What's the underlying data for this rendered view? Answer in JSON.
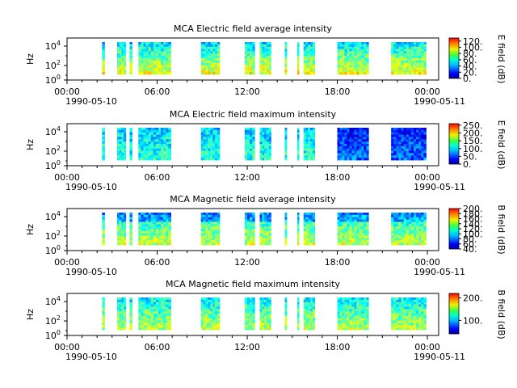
{
  "figure": {
    "x_tick_labels": [
      "00:00",
      "06:00",
      "12:00",
      "18:00",
      "00:00"
    ],
    "x_date_labels": [
      "1990-05-10",
      "1990-05-11"
    ]
  },
  "chart_data": [
    {
      "type": "heatmap",
      "title": "MCA  Electric field average intensity",
      "ylabel": "Hz",
      "y_tick_labels": [
        "10^0",
        "10^2",
        "10^4"
      ],
      "ylim_hz": [
        1,
        30000
      ],
      "y_scale": "log",
      "xlim": [
        "1990-05-10 00:00",
        "1990-05-11 00:45"
      ],
      "colorbar": {
        "label": "E field (dB)",
        "range": [
          0,
          130
        ],
        "ticks": [
          0,
          20,
          40,
          60,
          80,
          100,
          120
        ],
        "tick_labels": [
          "0.",
          "20.",
          "40.",
          "60.",
          "80.",
          "100.",
          "120."
        ]
      },
      "data_intervals": [
        [
          "02:20",
          "02:30"
        ],
        [
          "03:20",
          "03:55"
        ],
        [
          "04:10",
          "04:20"
        ],
        [
          "04:45",
          "06:55"
        ],
        [
          "08:55",
          "10:10"
        ],
        [
          "11:50",
          "12:30"
        ],
        [
          "12:50",
          "13:35"
        ],
        [
          "14:30",
          "14:38"
        ],
        [
          "15:20",
          "15:27"
        ],
        [
          "15:45",
          "16:30"
        ],
        [
          "18:00",
          "20:05"
        ],
        [
          "21:35",
          "23:55"
        ]
      ]
    },
    {
      "type": "heatmap",
      "title": "MCA  Electric field maximum intensity",
      "ylabel": "Hz",
      "y_tick_labels": [
        "10^0",
        "10^2",
        "10^4"
      ],
      "ylim_hz": [
        1,
        30000
      ],
      "y_scale": "log",
      "xlim": [
        "1990-05-10 00:00",
        "1990-05-11 00:45"
      ],
      "colorbar": {
        "label": "E field (dB)",
        "range": [
          0,
          260
        ],
        "ticks": [
          0,
          50,
          100,
          150,
          200,
          250
        ],
        "tick_labels": [
          "0.",
          "50.",
          "100.",
          "150.",
          "200.",
          "250."
        ]
      },
      "data_intervals": [
        [
          "02:20",
          "02:30"
        ],
        [
          "03:20",
          "03:55"
        ],
        [
          "04:10",
          "04:20"
        ],
        [
          "04:45",
          "06:55"
        ],
        [
          "08:55",
          "10:10"
        ],
        [
          "11:50",
          "12:30"
        ],
        [
          "12:50",
          "13:35"
        ],
        [
          "14:30",
          "14:38"
        ],
        [
          "15:20",
          "15:27"
        ],
        [
          "15:45",
          "16:30"
        ],
        [
          "18:00",
          "20:05"
        ],
        [
          "21:35",
          "23:55"
        ]
      ]
    },
    {
      "type": "heatmap",
      "title": "MCA  Magnetic field average intensity",
      "ylabel": "Hz",
      "y_tick_labels": [
        "10^0",
        "10^2",
        "10^4"
      ],
      "ylim_hz": [
        1,
        30000
      ],
      "y_scale": "log",
      "xlim": [
        "1990-05-10 00:00",
        "1990-05-11 00:45"
      ],
      "colorbar": {
        "label": "B field (dB)",
        "range": [
          40,
          200
        ],
        "ticks": [
          40,
          60,
          80,
          100,
          120,
          140,
          160,
          180,
          200
        ],
        "tick_labels": [
          "40.",
          "60.",
          "80.",
          "100.",
          "120.",
          "140.",
          "160.",
          "180.",
          "200."
        ]
      },
      "data_intervals": [
        [
          "02:20",
          "02:30"
        ],
        [
          "03:20",
          "03:55"
        ],
        [
          "04:10",
          "04:20"
        ],
        [
          "04:45",
          "06:55"
        ],
        [
          "08:55",
          "10:10"
        ],
        [
          "11:50",
          "12:30"
        ],
        [
          "12:50",
          "13:35"
        ],
        [
          "14:30",
          "14:38"
        ],
        [
          "15:20",
          "15:27"
        ],
        [
          "15:45",
          "16:30"
        ],
        [
          "18:00",
          "20:05"
        ],
        [
          "21:35",
          "23:55"
        ]
      ]
    },
    {
      "type": "heatmap",
      "title": "MCA  Magnetic field maximum intensity",
      "ylabel": "Hz",
      "y_tick_labels": [
        "10^0",
        "10^2",
        "10^4"
      ],
      "ylim_hz": [
        1,
        30000
      ],
      "y_scale": "log",
      "xlim": [
        "1990-05-10 00:00",
        "1990-05-11 00:45"
      ],
      "colorbar": {
        "label": "B field (dB)",
        "range": [
          40,
          220
        ],
        "ticks": [
          100,
          200
        ],
        "tick_labels": [
          "100.",
          "200."
        ]
      },
      "data_intervals": [
        [
          "02:20",
          "02:30"
        ],
        [
          "03:20",
          "03:55"
        ],
        [
          "04:10",
          "04:20"
        ],
        [
          "04:45",
          "06:55"
        ],
        [
          "08:55",
          "10:10"
        ],
        [
          "11:50",
          "12:30"
        ],
        [
          "12:50",
          "13:35"
        ],
        [
          "14:30",
          "14:38"
        ],
        [
          "15:20",
          "15:27"
        ],
        [
          "15:45",
          "16:30"
        ],
        [
          "18:00",
          "20:05"
        ],
        [
          "21:35",
          "23:55"
        ]
      ]
    }
  ]
}
